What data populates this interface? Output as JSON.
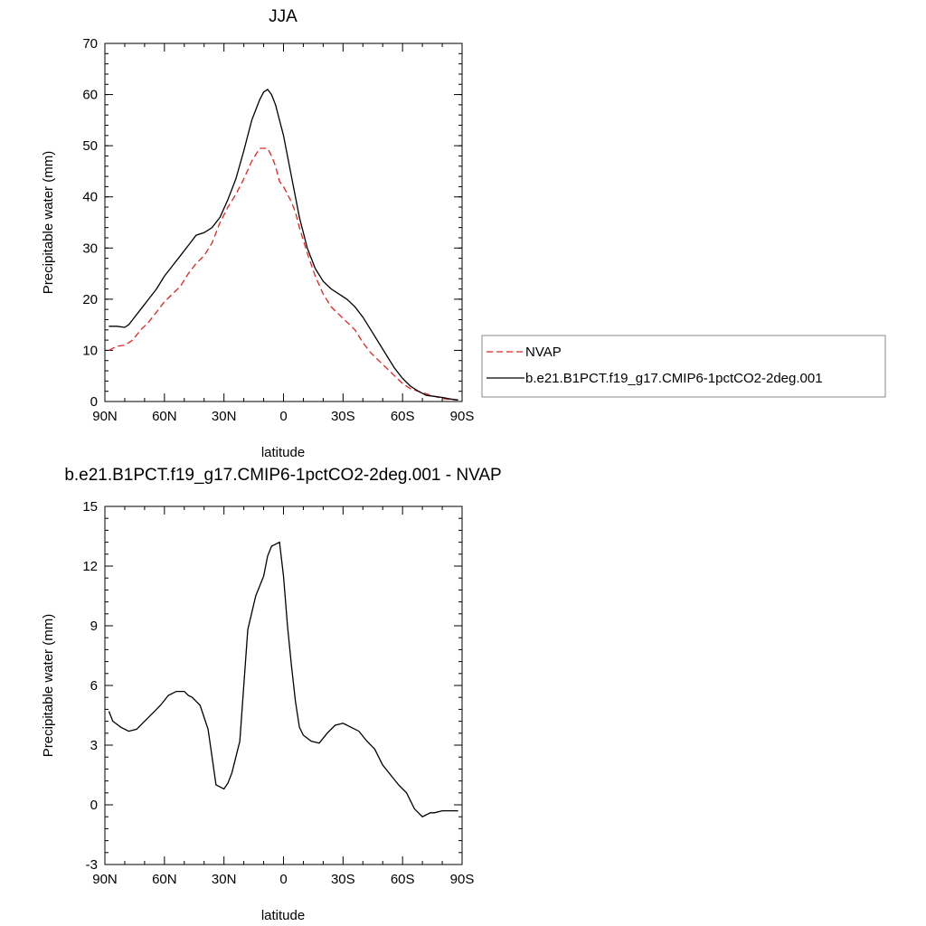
{
  "chart_data": [
    {
      "type": "line",
      "title": "JJA",
      "xlabel": "latitude",
      "ylabel": "Precipitable water (mm)",
      "xlim": [
        -90,
        90
      ],
      "ylim": [
        0,
        70
      ],
      "x_ticks": [
        -90,
        -60,
        -30,
        0,
        30,
        60,
        90
      ],
      "x_tick_labels": [
        "90N",
        "60N",
        "30N",
        "0",
        "30S",
        "60S",
        "90S"
      ],
      "y_ticks": [
        0,
        10,
        20,
        30,
        40,
        50,
        60,
        70
      ],
      "y_tick_labels": [
        "0",
        "10",
        "20",
        "30",
        "40",
        "50",
        "60",
        "70"
      ],
      "legend_position": "right",
      "series": [
        {
          "name": "NVAP",
          "color": "#e8231e",
          "dash": "dashed",
          "x": [
            -88,
            -84,
            -80,
            -76,
            -72,
            -68,
            -64,
            -60,
            -56,
            -52,
            -48,
            -44,
            -40,
            -36,
            -32,
            -28,
            -24,
            -20,
            -16,
            -12,
            -8,
            -6,
            -4,
            -2,
            0,
            2,
            4,
            6,
            8,
            12,
            16,
            20,
            24,
            28,
            32,
            36,
            40,
            44,
            48,
            52,
            56,
            60,
            64,
            68,
            72,
            76,
            80,
            84,
            88
          ],
          "y": [
            10,
            10.8,
            11,
            12,
            14,
            15.5,
            17.5,
            19.5,
            21,
            22.5,
            25,
            27,
            28.5,
            31,
            35,
            38,
            40.5,
            43.5,
            47,
            49.5,
            49.5,
            48,
            46,
            43,
            42,
            40.5,
            39,
            37,
            34,
            29,
            24.5,
            21,
            18.5,
            17,
            15.5,
            14,
            11.5,
            9.5,
            8,
            6.5,
            5,
            3.5,
            2.5,
            2,
            1.5,
            1,
            0.6,
            0.4,
            0.3
          ]
        },
        {
          "name": "b.e21.B1PCT.f19_g17.CMIP6-1pctCO2-2deg.001",
          "color": "#000000",
          "dash": "solid",
          "x": [
            -88,
            -84,
            -80,
            -78,
            -76,
            -72,
            -68,
            -64,
            -60,
            -56,
            -52,
            -48,
            -44,
            -40,
            -36,
            -32,
            -28,
            -24,
            -20,
            -16,
            -12,
            -10,
            -8,
            -6,
            -4,
            -2,
            0,
            2,
            4,
            6,
            8,
            12,
            16,
            20,
            24,
            28,
            32,
            36,
            40,
            44,
            48,
            52,
            56,
            60,
            64,
            68,
            72,
            76,
            80,
            84,
            88
          ],
          "y": [
            14.7,
            14.7,
            14.5,
            15,
            16,
            18,
            20,
            22,
            24.5,
            26.5,
            28.5,
            30.5,
            32.5,
            33,
            34,
            36,
            39.5,
            43.5,
            49,
            55,
            59,
            60.5,
            61,
            60,
            58,
            55,
            52,
            48,
            44,
            40,
            36,
            30,
            26,
            23.5,
            22,
            21,
            20,
            18.5,
            16.5,
            14,
            11.5,
            9,
            6.5,
            4.5,
            3,
            2,
            1.2,
            1,
            0.8,
            0.5,
            0.3
          ]
        }
      ]
    },
    {
      "type": "line",
      "title": "b.e21.B1PCT.f19_g17.CMIP6-1pctCO2-2deg.001 - NVAP",
      "xlabel": "latitude",
      "ylabel": "Precipitable water (mm)",
      "xlim": [
        -90,
        90
      ],
      "ylim": [
        -3,
        15
      ],
      "x_ticks": [
        -90,
        -60,
        -30,
        0,
        30,
        60,
        90
      ],
      "x_tick_labels": [
        "90N",
        "60N",
        "30N",
        "0",
        "30S",
        "60S",
        "90S"
      ],
      "y_ticks": [
        -3,
        0,
        3,
        6,
        9,
        12,
        15
      ],
      "y_tick_labels": [
        "-3",
        "0",
        "3",
        "6",
        "9",
        "12",
        "15"
      ],
      "series": [
        {
          "color": "#000000",
          "dash": "solid",
          "x": [
            -88,
            -86,
            -82,
            -78,
            -74,
            -70,
            -66,
            -62,
            -58,
            -54,
            -50,
            -48,
            -46,
            -42,
            -38,
            -34,
            -30,
            -28,
            -26,
            -22,
            -18,
            -14,
            -10,
            -8,
            -6,
            -4,
            -2,
            0,
            2,
            4,
            6,
            8,
            10,
            14,
            18,
            22,
            26,
            30,
            34,
            38,
            42,
            46,
            50,
            54,
            58,
            62,
            66,
            70,
            72,
            74,
            76,
            80,
            84,
            88
          ],
          "y": [
            4.7,
            4.2,
            3.9,
            3.7,
            3.8,
            4.2,
            4.6,
            5.0,
            5.5,
            5.7,
            5.7,
            5.5,
            5.4,
            5.0,
            3.8,
            1.0,
            0.8,
            1.1,
            1.6,
            3.2,
            8.8,
            10.5,
            11.5,
            12.5,
            13.0,
            13.1,
            13.2,
            11.5,
            9.0,
            7.0,
            5.2,
            3.9,
            3.5,
            3.2,
            3.1,
            3.6,
            4.0,
            4.1,
            3.9,
            3.7,
            3.2,
            2.8,
            2.0,
            1.5,
            1.0,
            0.6,
            -0.2,
            -0.6,
            -0.5,
            -0.4,
            -0.4,
            -0.3,
            -0.3,
            -0.3
          ]
        }
      ]
    }
  ]
}
